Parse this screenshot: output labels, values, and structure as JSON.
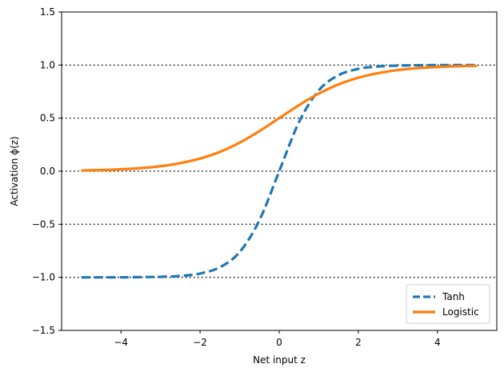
{
  "chart_data": {
    "type": "line",
    "xlabel": "Net input z",
    "ylabel": "Activation ϕ(z)",
    "xlim": [
      -5.5,
      5.5
    ],
    "ylim": [
      -1.5,
      1.5
    ],
    "xticks": [
      -4,
      -2,
      0,
      2,
      4
    ],
    "xtick_labels": [
      "−4",
      "−2",
      "0",
      "2",
      "4"
    ],
    "yticks": [
      -1.5,
      -1.0,
      -0.5,
      0.0,
      0.5,
      1.0,
      1.5
    ],
    "ytick_labels": [
      "−1.5",
      "−1.0",
      "−0.5",
      "0.0",
      "0.5",
      "1.0",
      "1.5"
    ],
    "hlines": [
      -1.0,
      -0.5,
      0.0,
      0.5,
      1.0
    ],
    "legend_placement": "lower-right",
    "x": [
      -5.0,
      -4.5,
      -4.0,
      -3.5,
      -3.0,
      -2.5,
      -2.0,
      -1.5,
      -1.0,
      -0.5,
      0.0,
      0.5,
      1.0,
      1.5,
      2.0,
      2.5,
      3.0,
      3.5,
      4.0,
      4.5,
      5.0
    ],
    "series": [
      {
        "name": "Tanh",
        "color": "#1f77b4",
        "style": "dashed",
        "values": [
          -1.0,
          -1.0,
          -1.0,
          -0.998,
          -0.995,
          -0.987,
          -0.964,
          -0.905,
          -0.762,
          -0.462,
          0.0,
          0.462,
          0.762,
          0.905,
          0.964,
          0.987,
          0.995,
          0.998,
          1.0,
          1.0,
          1.0
        ]
      },
      {
        "name": "Logistic",
        "color": "#ff7f0e",
        "style": "solid",
        "values": [
          0.007,
          0.011,
          0.018,
          0.029,
          0.047,
          0.076,
          0.119,
          0.182,
          0.269,
          0.378,
          0.5,
          0.622,
          0.731,
          0.818,
          0.881,
          0.924,
          0.953,
          0.971,
          0.982,
          0.989,
          0.993
        ]
      }
    ]
  }
}
